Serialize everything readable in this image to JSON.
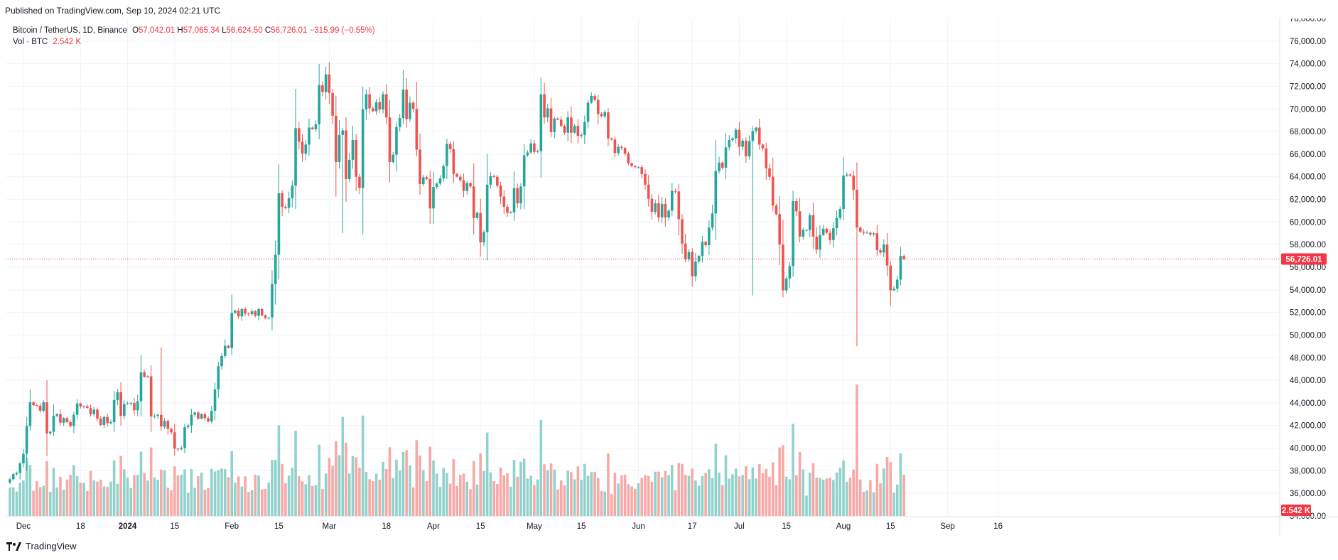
{
  "header": {
    "published": "Published on TradingView.com, Sep 10, 2024 02:21 UTC"
  },
  "legend": {
    "symbol": "Bitcoin / TetherUS, 1D, Binance",
    "o_label": "O",
    "o_value": "57,042.01",
    "h_label": "H",
    "h_value": "57,065.34",
    "l_label": "L",
    "l_value": "56,624.50",
    "c_label": "C",
    "c_value": "56,726.01",
    "change": "−315.99 (−0.55%)",
    "vol_label": "Vol · BTC",
    "vol_value": "2.542 K"
  },
  "footer": {
    "brand": "TradingView"
  },
  "colors": {
    "up": "#26a69a",
    "down": "#ef5350",
    "vol_up": "#92d2cc",
    "vol_down": "#f7a9a7",
    "grid": "#f0f3fa",
    "axis_text": "#131722",
    "price_line": "#f23645"
  },
  "chart_data": {
    "type": "candlestick",
    "symbol": "Bitcoin / TetherUS",
    "interval": "1D",
    "exchange": "Binance",
    "ylim": [
      34000,
      78000
    ],
    "y_ticks": [
      36000,
      38000,
      40000,
      42000,
      44000,
      46000,
      48000,
      50000,
      52000,
      54000,
      56000,
      58000,
      60000,
      62000,
      64000,
      66000,
      68000,
      70000,
      72000,
      74000,
      76000,
      78000
    ],
    "y_tick_labels": [
      "36,000.00",
      "38,000.00",
      "40,000.00",
      "42,000.00",
      "44,000.00",
      "46,000.00",
      "48,000.00",
      "50,000.00",
      "52,000.00",
      "54,000.00",
      "56,000.00",
      "58,000.00",
      "60,000.00",
      "62,000.00",
      "64,000.00",
      "66,000.00",
      "68,000.00",
      "70,000.00",
      "72,000.00",
      "74,000.00",
      "76,000.00",
      "78,000.00"
    ],
    "partial_tick_label": "34,000.00",
    "x_labels": [
      {
        "date": "2023-12-01",
        "label": "Dec"
      },
      {
        "date": "2023-12-18",
        "label": "18"
      },
      {
        "date": "2024-01-01",
        "label": "2024"
      },
      {
        "date": "2024-01-15",
        "label": "15"
      },
      {
        "date": "2024-02-01",
        "label": "Feb"
      },
      {
        "date": "2024-02-15",
        "label": "15"
      },
      {
        "date": "2024-03-01",
        "label": "Mar"
      },
      {
        "date": "2024-03-18",
        "label": "18"
      },
      {
        "date": "2024-04-01",
        "label": "Apr"
      },
      {
        "date": "2024-04-15",
        "label": "15"
      },
      {
        "date": "2024-05-01",
        "label": "May"
      },
      {
        "date": "2024-05-15",
        "label": "15"
      },
      {
        "date": "2024-06-01",
        "label": "Jun"
      },
      {
        "date": "2024-06-17",
        "label": "17"
      },
      {
        "date": "2024-07-01",
        "label": "Jul"
      },
      {
        "date": "2024-07-15",
        "label": "15"
      },
      {
        "date": "2024-08-01",
        "label": "Aug"
      },
      {
        "date": "2024-08-15",
        "label": "15"
      },
      {
        "date": "2024-09-01",
        "label": "Sep"
      },
      {
        "date": "2024-09-16",
        "label": "16"
      }
    ],
    "last_price": 56726.01,
    "last_price_label": "56,726.01",
    "last_volume_label": "2.542 K",
    "start_date": "2023-11-27",
    "close_series": [
      37250,
      37700,
      37800,
      38650,
      39500,
      41950,
      44050,
      43800,
      43750,
      43300,
      44050,
      41300,
      41450,
      42850,
      43000,
      42250,
      42650,
      42300,
      41950,
      42950,
      43950,
      43700,
      43700,
      43550,
      43000,
      43400,
      42600,
      42050,
      42750,
      42200,
      42300,
      44250,
      44950,
      42850,
      43900,
      43950,
      44000,
      43350,
      44150,
      46700,
      46300,
      46350,
      42800,
      42850,
      42950,
      41900,
      42400,
      41700,
      41400,
      39950,
      39900,
      40000,
      41850,
      42000,
      42950,
      43150,
      42600,
      43000,
      42650,
      42350,
      43300,
      45200,
      47250,
      48150,
      49050,
      48850,
      51950,
      52150,
      51650,
      52300,
      51900,
      51850,
      52100,
      51700,
      52300,
      51750,
      51500,
      51550,
      54500,
      57100,
      62550,
      61350,
      61250,
      62100,
      63200,
      68300,
      67100,
      66050,
      66850,
      68350,
      68200,
      68650,
      72100,
      71500,
      73050,
      71400,
      69400,
      65300,
      67700,
      68100,
      63800,
      65500,
      67250,
      64000,
      63000,
      69950,
      71300,
      70050,
      69800,
      70600,
      69950,
      71300,
      69250,
      65300,
      65950,
      68400,
      69200,
      71700,
      69100,
      70550,
      70000,
      66400,
      63350,
      63950,
      63800,
      61200,
      63100,
      63400,
      63850,
      64950,
      66900,
      66450,
      64250,
      64000,
      63700,
      62750,
      63450,
      63150,
      60350,
      60800,
      58200,
      59100,
      63300,
      64050,
      64000,
      63200,
      62250,
      61350,
      60800,
      60850,
      63000,
      61650,
      63150,
      65900,
      66150,
      66950,
      66200,
      66250,
      71300,
      69250,
      70050,
      67950,
      69150,
      69050,
      68500,
      67900,
      69250,
      67900,
      68500,
      67600,
      67700,
      68850,
      70550,
      71150,
      70800,
      69550,
      69350,
      69700,
      67400,
      67300,
      66100,
      66650,
      66550,
      66050,
      65200,
      64950,
      64850,
      64850,
      64250,
      63300,
      62050,
      60900,
      61650,
      60400,
      61600,
      60400,
      61000,
      62750,
      62700,
      60250,
      58100,
      56700,
      57350,
      55200,
      56500,
      57000,
      58250,
      57950,
      59500,
      60750,
      64500,
      65250,
      64800,
      66600,
      67250,
      67400,
      68150,
      66650,
      67200,
      65800,
      67150,
      68050,
      68350,
      66850,
      66500,
      64750,
      64000,
      61450,
      60700,
      58000,
      53950,
      55000,
      56100,
      61850,
      60950,
      58700,
      59300,
      59300,
      60600,
      58700,
      57550,
      58850,
      59400,
      59050,
      58400,
      59450,
      60350,
      61150,
      64100,
      64200,
      64100,
      62850,
      59500,
      59150,
      59050,
      59050,
      58900,
      59000,
      57500,
      57300,
      58000,
      56150,
      53950,
      54100,
      54900,
      57000,
      56726
    ],
    "volume_units": "thousand BTC",
    "volume_max": 65
  }
}
